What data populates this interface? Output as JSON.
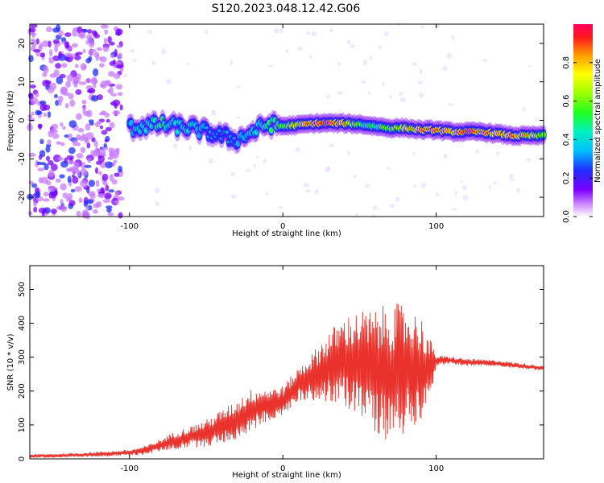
{
  "title": "S120.2023.048.12.42.G06",
  "chart_data": [
    {
      "type": "heatmap",
      "xlabel": "Height of straight line (km)",
      "ylabel": "Frequency (Hz)",
      "xlim": [
        -165,
        170
      ],
      "ylim": [
        -25,
        25
      ],
      "xticks": [
        -100,
        0,
        100
      ],
      "yticks": [
        -20,
        -10,
        0,
        10,
        20
      ],
      "colorbar": {
        "label": "Normalized spectral amplitude",
        "range": [
          0,
          1
        ],
        "ticks": [
          0.0,
          0.2,
          0.4,
          0.6,
          0.8
        ],
        "colormap": "rainbow (white-violet-blue-cyan-green-yellow-orange-red-magenta)"
      },
      "ridge": {
        "x": [
          -100,
          -90,
          -80,
          -70,
          -60,
          -50,
          -40,
          -30,
          -20,
          -10,
          0,
          10,
          20,
          30,
          40,
          50,
          60,
          70,
          80,
          90,
          100,
          110,
          120,
          130,
          140,
          150,
          160,
          170
        ],
        "y": [
          -2,
          -1.5,
          -1,
          -1.5,
          -2,
          -3,
          -4,
          -5,
          -3,
          -1,
          -1.5,
          -1.2,
          -0.8,
          -0.7,
          -0.8,
          -1,
          -1.5,
          -2,
          -2,
          -2.5,
          -2.5,
          -3,
          -3,
          -3,
          -3.5,
          -4,
          -4,
          -4
        ],
        "amplitude": [
          0.3,
          0.4,
          0.45,
          0.4,
          0.35,
          0.3,
          0.25,
          0.3,
          0.35,
          0.45,
          0.55,
          0.75,
          0.9,
          0.95,
          0.8,
          0.55,
          0.5,
          0.6,
          0.7,
          0.85,
          0.9,
          0.8,
          0.95,
          0.9,
          0.8,
          0.85,
          0.75,
          0.6
        ]
      },
      "noise_region_xlim": [
        -165,
        -105
      ]
    },
    {
      "type": "line",
      "xlabel": "Height of straight line (km)",
      "ylabel": "SNR (10 * v/v)",
      "xlim": [
        -165,
        170
      ],
      "ylim": [
        0,
        570
      ],
      "xticks": [
        -100,
        0,
        100
      ],
      "yticks": [
        0,
        100,
        200,
        300,
        400,
        500
      ],
      "color": "#e8322b",
      "envelope": {
        "x": [
          -165,
          -140,
          -120,
          -100,
          -90,
          -80,
          -70,
          -60,
          -50,
          -40,
          -30,
          -20,
          -10,
          0,
          10,
          20,
          30,
          40,
          50,
          60,
          70,
          80,
          90,
          95,
          100,
          110,
          120,
          140,
          160,
          170
        ],
        "mean": [
          8,
          10,
          14,
          18,
          25,
          40,
          55,
          65,
          75,
          95,
          115,
          145,
          160,
          170,
          220,
          245,
          270,
          285,
          285,
          260,
          255,
          265,
          270,
          260,
          290,
          290,
          285,
          282,
          272,
          268
        ],
        "spread": [
          6,
          7,
          8,
          10,
          14,
          20,
          30,
          35,
          45,
          55,
          65,
          70,
          55,
          50,
          55,
          80,
          120,
          150,
          170,
          200,
          230,
          210,
          170,
          120,
          18,
          12,
          12,
          10,
          9,
          8
        ]
      }
    }
  ]
}
